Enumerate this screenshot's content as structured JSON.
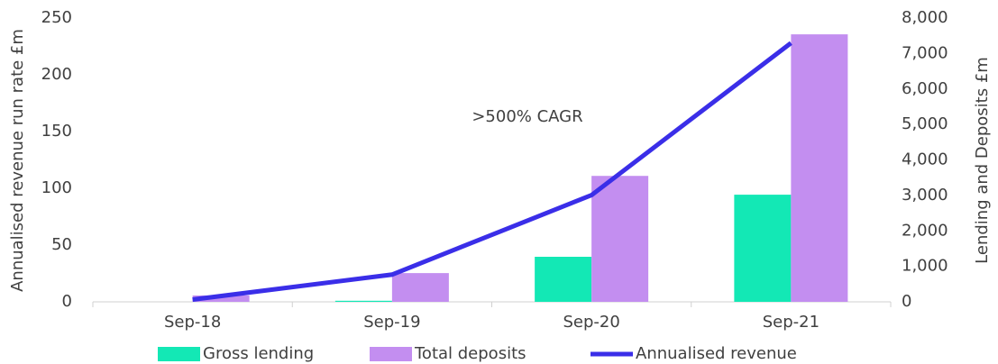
{
  "chart_data": {
    "type": "bar_line",
    "categories": [
      "Sep-18",
      "Sep-19",
      "Sep-20",
      "Sep-21"
    ],
    "series": [
      {
        "name": "Gross lending",
        "color": "#13e8b5",
        "axis": "y2",
        "kind": "bar",
        "values": [
          0,
          30,
          1270,
          3020
        ]
      },
      {
        "name": "Total deposits",
        "color": "#c38ef0",
        "axis": "y2",
        "kind": "bar",
        "values": [
          180,
          810,
          3550,
          7540
        ]
      },
      {
        "name": "Annualised revenue",
        "color": "#3a2ee8",
        "axis": "y",
        "kind": "line",
        "values": [
          2,
          24,
          94,
          228
        ]
      }
    ],
    "ylabel": "Annualised revenue run rate £m",
    "y2label": "Lending and Deposits £m",
    "annotation": ">500% CAGR",
    "ylim": [
      0,
      250
    ],
    "yticks": [
      0,
      50,
      100,
      150,
      200,
      250
    ],
    "y2lim": [
      0,
      8000
    ],
    "y2ticks": [
      0,
      {
        "value": 1000,
        "label": "1,000"
      },
      {
        "value": 2000,
        "label": "2,000"
      },
      {
        "value": 3000,
        "label": "3,000"
      },
      {
        "value": 4000,
        "label": "4,000"
      },
      {
        "value": 5000,
        "label": "5,000"
      },
      {
        "value": 6000,
        "label": "6,000"
      },
      {
        "value": 7000,
        "label": "7,000"
      },
      {
        "value": 8000,
        "label": "8,000"
      }
    ],
    "legend": "bottom"
  }
}
